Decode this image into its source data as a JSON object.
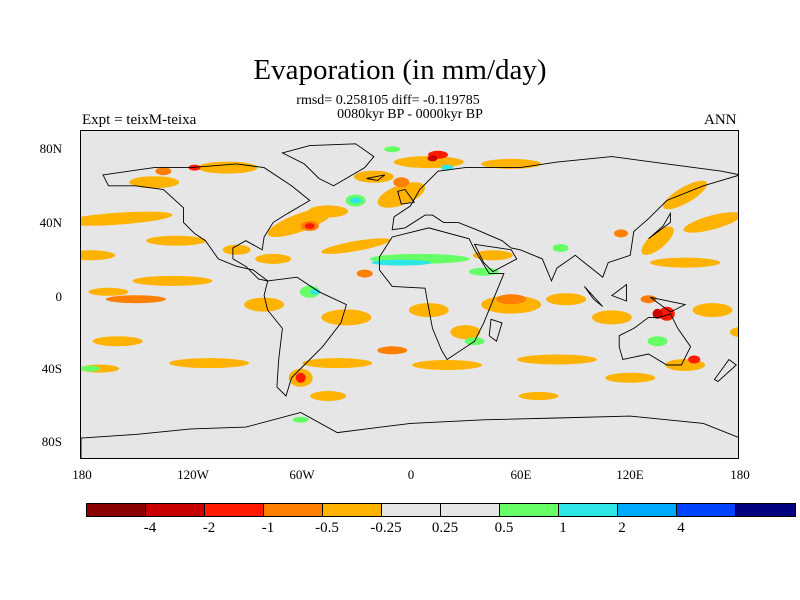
{
  "title": "Evaporation (in mm/day)",
  "stats_line1": "rmsd= 0.258105 diff= -0.119785",
  "stats_line2": "0080kyr BP - 0000kyr BP",
  "left_label": "Expt = teixM-teixa",
  "right_label": "ANN",
  "map": {
    "projection": "cylindrical equidistant",
    "lon_range": [
      -180,
      180
    ],
    "lat_range": [
      -90,
      90
    ],
    "background_color": "#e6e6e6",
    "y_ticks": [
      "80N",
      "40N",
      "0",
      "40S",
      "80S"
    ],
    "x_ticks": [
      "180",
      "120W",
      "60W",
      "0",
      "60E",
      "120E",
      "180"
    ]
  },
  "colorbar": {
    "colors": [
      "#8b0000",
      "#c80000",
      "#ff1a00",
      "#ff7f00",
      "#ffb300",
      "#e6e6e6",
      "#e6e6e6",
      "#66ff66",
      "#2ee6e6",
      "#00aaff",
      "#0044ff",
      "#00007f"
    ],
    "labels": [
      "-4",
      "-2",
      "-1",
      "-0.5",
      "-0.25",
      "0.25",
      "0.5",
      "1",
      "2",
      "4"
    ]
  }
}
